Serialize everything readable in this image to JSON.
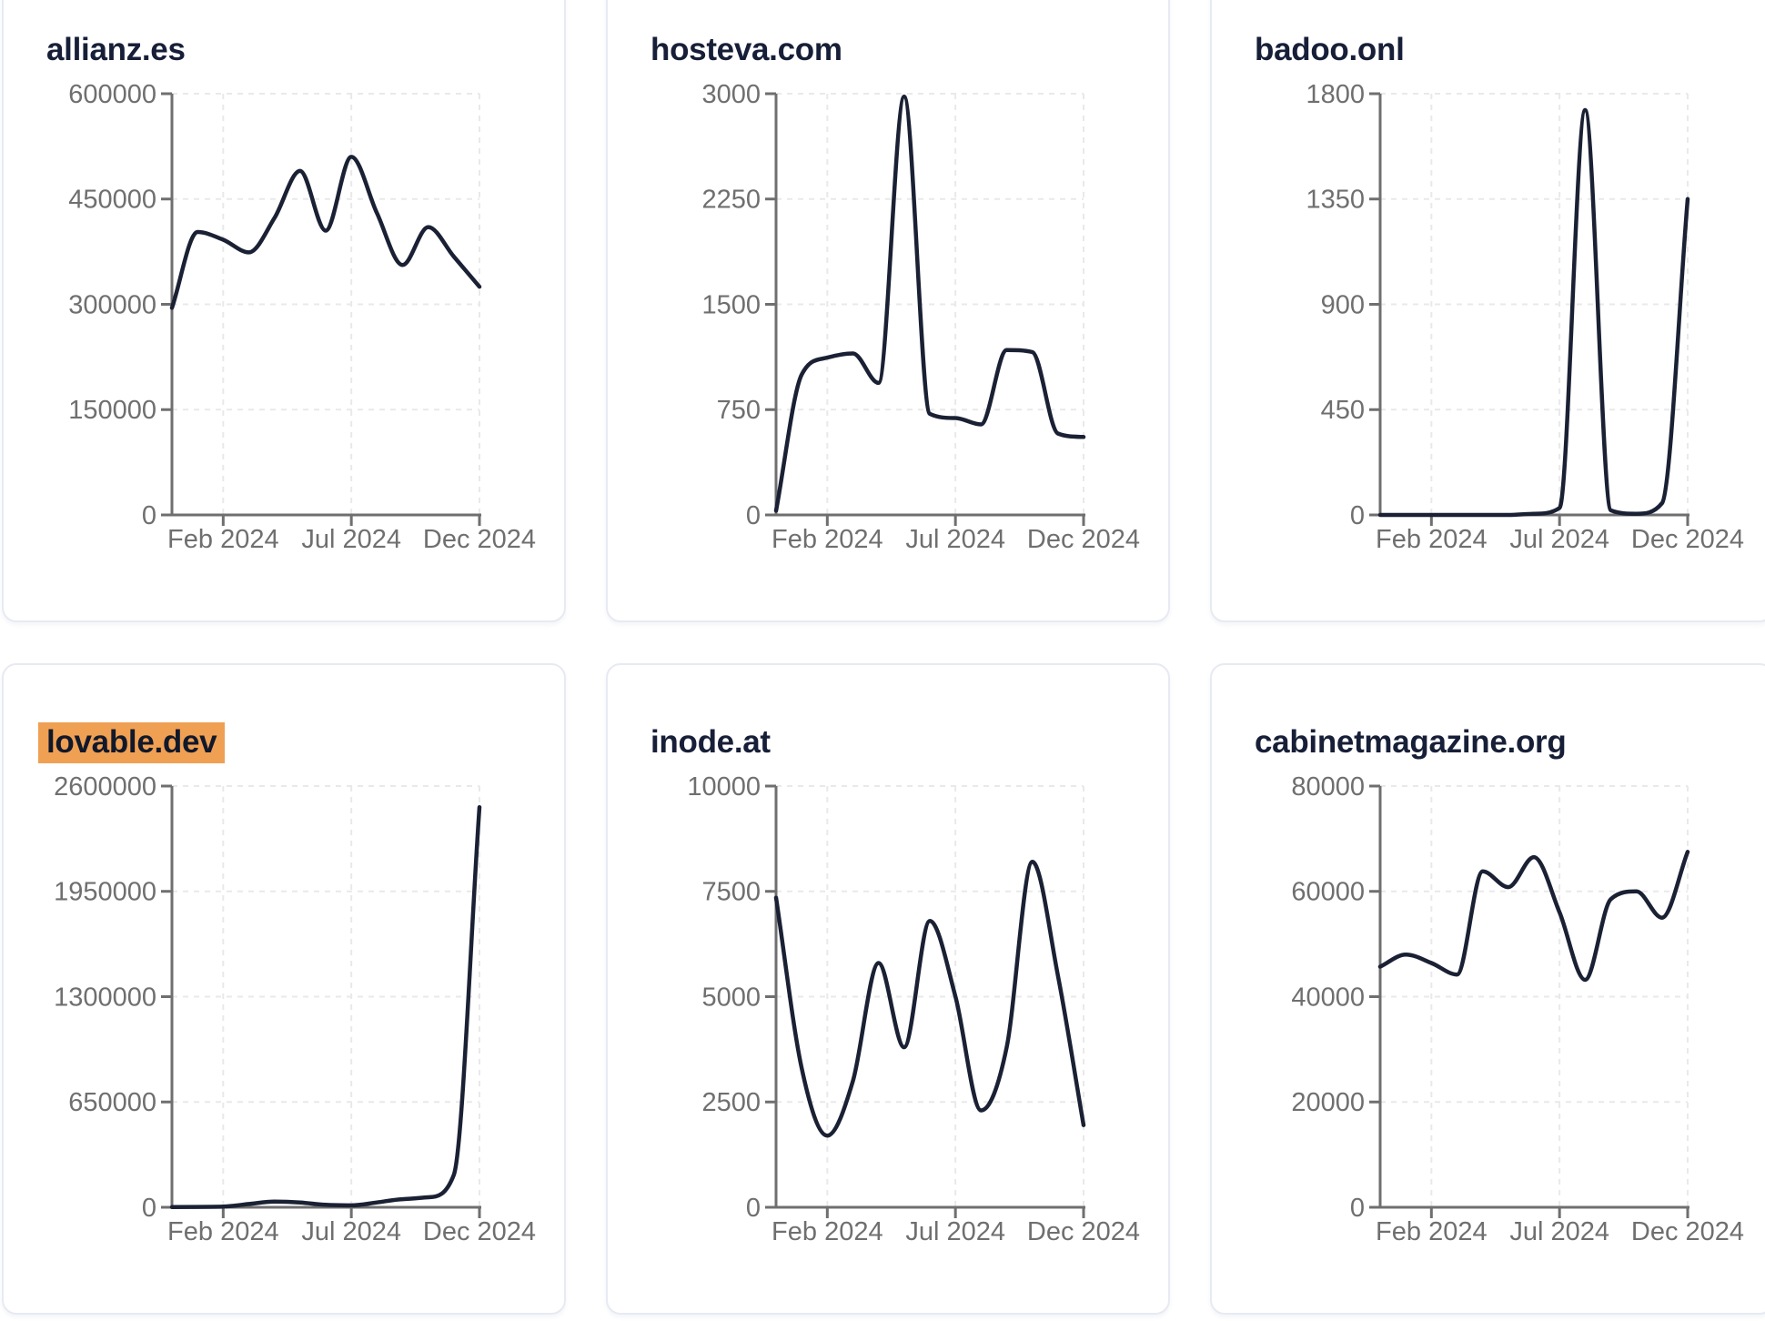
{
  "page": {
    "background": "#ffffff",
    "layout": "3x2-grid-of-domain-traffic-cards"
  },
  "theme": {
    "line_color": "#1b2134",
    "axis_color": "#6f6f6f",
    "tick_text_color": "#6f6f6f",
    "grid_color": "#e9e9e9",
    "title_color": "#171f38",
    "highlight_color": "#efa053",
    "card_border_color": "#e7eaf2",
    "card_background": "#ffffff"
  },
  "chart_data": [
    {
      "type": "line",
      "title": "allianz.es",
      "title_highlighted": false,
      "x_ticks": [
        {
          "label": "Feb 2024",
          "index": 2
        },
        {
          "label": "Jul 2024",
          "index": 7
        },
        {
          "label": "Dec 2024",
          "index": 12
        }
      ],
      "x_point_count": 13,
      "y_ticks": [
        0,
        150000,
        300000,
        450000,
        600000
      ],
      "ylim": [
        0,
        600000
      ],
      "grid": "dashed",
      "legend": false,
      "values": [
        295000,
        403000,
        392000,
        374000,
        423000,
        490000,
        405000,
        510000,
        430000,
        356000,
        410000,
        368000,
        325000
      ]
    },
    {
      "type": "line",
      "title": "hosteva.com",
      "title_highlighted": false,
      "x_ticks": [
        {
          "label": "Feb 2024",
          "index": 2
        },
        {
          "label": "Jul 2024",
          "index": 7
        },
        {
          "label": "Dec 2024",
          "index": 12
        }
      ],
      "x_point_count": 13,
      "y_ticks": [
        0,
        750,
        1500,
        2250,
        3000
      ],
      "ylim": [
        0,
        3000
      ],
      "grid": "dashed",
      "legend": false,
      "values": [
        30,
        1000,
        1120,
        1150,
        940,
        2980,
        720,
        690,
        645,
        1175,
        1160,
        580,
        555
      ]
    },
    {
      "type": "line",
      "title": "badoo.onl",
      "title_highlighted": false,
      "x_ticks": [
        {
          "label": "Feb 2024",
          "index": 2
        },
        {
          "label": "Jul 2024",
          "index": 7
        },
        {
          "label": "Dec 2024",
          "index": 12
        }
      ],
      "x_point_count": 13,
      "y_ticks": [
        0,
        450,
        900,
        1350,
        1800
      ],
      "ylim": [
        0,
        1800
      ],
      "grid": "dashed",
      "legend": false,
      "values": [
        0,
        0,
        0,
        0,
        0,
        0,
        5,
        30,
        1730,
        20,
        5,
        50,
        1350
      ]
    },
    {
      "type": "line",
      "title": "lovable.dev",
      "title_highlighted": true,
      "x_ticks": [
        {
          "label": "Feb 2024",
          "index": 2
        },
        {
          "label": "Jul 2024",
          "index": 7
        },
        {
          "label": "Dec 2024",
          "index": 12
        }
      ],
      "x_point_count": 13,
      "y_ticks": [
        0,
        650000,
        1300000,
        1950000,
        2600000
      ],
      "ylim": [
        0,
        2600000
      ],
      "grid": "dashed",
      "legend": false,
      "values": [
        1000,
        2000,
        4000,
        20000,
        35000,
        30000,
        15000,
        12000,
        30000,
        50000,
        62000,
        200000,
        2470000
      ]
    },
    {
      "type": "line",
      "title": "inode.at",
      "title_highlighted": false,
      "x_ticks": [
        {
          "label": "Feb 2024",
          "index": 2
        },
        {
          "label": "Jul 2024",
          "index": 7
        },
        {
          "label": "Dec 2024",
          "index": 12
        }
      ],
      "x_point_count": 13,
      "y_ticks": [
        0,
        2500,
        5000,
        7500,
        10000
      ],
      "ylim": [
        0,
        10000
      ],
      "grid": "dashed",
      "legend": false,
      "values": [
        7350,
        3300,
        1700,
        3000,
        5800,
        3800,
        6800,
        5000,
        2300,
        3800,
        8200,
        5500,
        1950
      ]
    },
    {
      "type": "line",
      "title": "cabinetmagazine.org",
      "title_highlighted": false,
      "x_ticks": [
        {
          "label": "Feb 2024",
          "index": 2
        },
        {
          "label": "Jul 2024",
          "index": 7
        },
        {
          "label": "Dec 2024",
          "index": 12
        }
      ],
      "x_point_count": 13,
      "y_ticks": [
        0,
        20000,
        40000,
        60000,
        80000
      ],
      "ylim": [
        0,
        80000
      ],
      "grid": "dashed",
      "legend": false,
      "values": [
        45700,
        48000,
        46400,
        44200,
        63800,
        60800,
        66500,
        56000,
        43200,
        58500,
        60000,
        55000,
        67500
      ]
    }
  ]
}
